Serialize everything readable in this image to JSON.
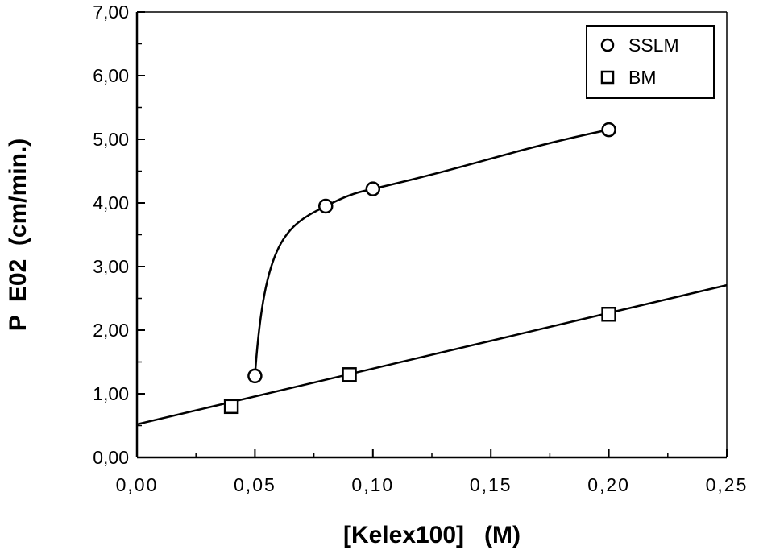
{
  "chart_data": {
    "type": "scatter",
    "title": "",
    "xlabel": "[Kelex100]   (M)",
    "ylabel": "P  E02  (cm/min.)",
    "xlim": [
      0,
      0.25
    ],
    "ylim": [
      0,
      7
    ],
    "x_ticks": [
      0,
      0.05,
      0.1,
      0.15,
      0.2,
      0.25
    ],
    "x_tick_labels": [
      "0,00",
      "0,05",
      "0,10",
      "0,15",
      "0,20",
      "0,25"
    ],
    "y_ticks": [
      0,
      1,
      2,
      3,
      4,
      5,
      6,
      7
    ],
    "y_tick_labels": [
      "0,00",
      "1,00",
      "2,00",
      "3,00",
      "4,00",
      "5,00",
      "6,00",
      "7,00"
    ],
    "grid": false,
    "legend_position": "top-right",
    "series": [
      {
        "name": "SSLM",
        "marker": "circle",
        "curve": "smooth",
        "x": [
          0.05,
          0.08,
          0.1,
          0.2
        ],
        "y": [
          1.28,
          3.95,
          4.22,
          5.15
        ]
      },
      {
        "name": "BM",
        "marker": "square",
        "curve": "linear-fit",
        "fit": {
          "intercept": 0.52,
          "slope": 8.75
        },
        "x": [
          0.04,
          0.09,
          0.2
        ],
        "y": [
          0.8,
          1.3,
          2.25
        ]
      }
    ],
    "colors": {
      "line": "#000000",
      "background": "#ffffff"
    }
  }
}
